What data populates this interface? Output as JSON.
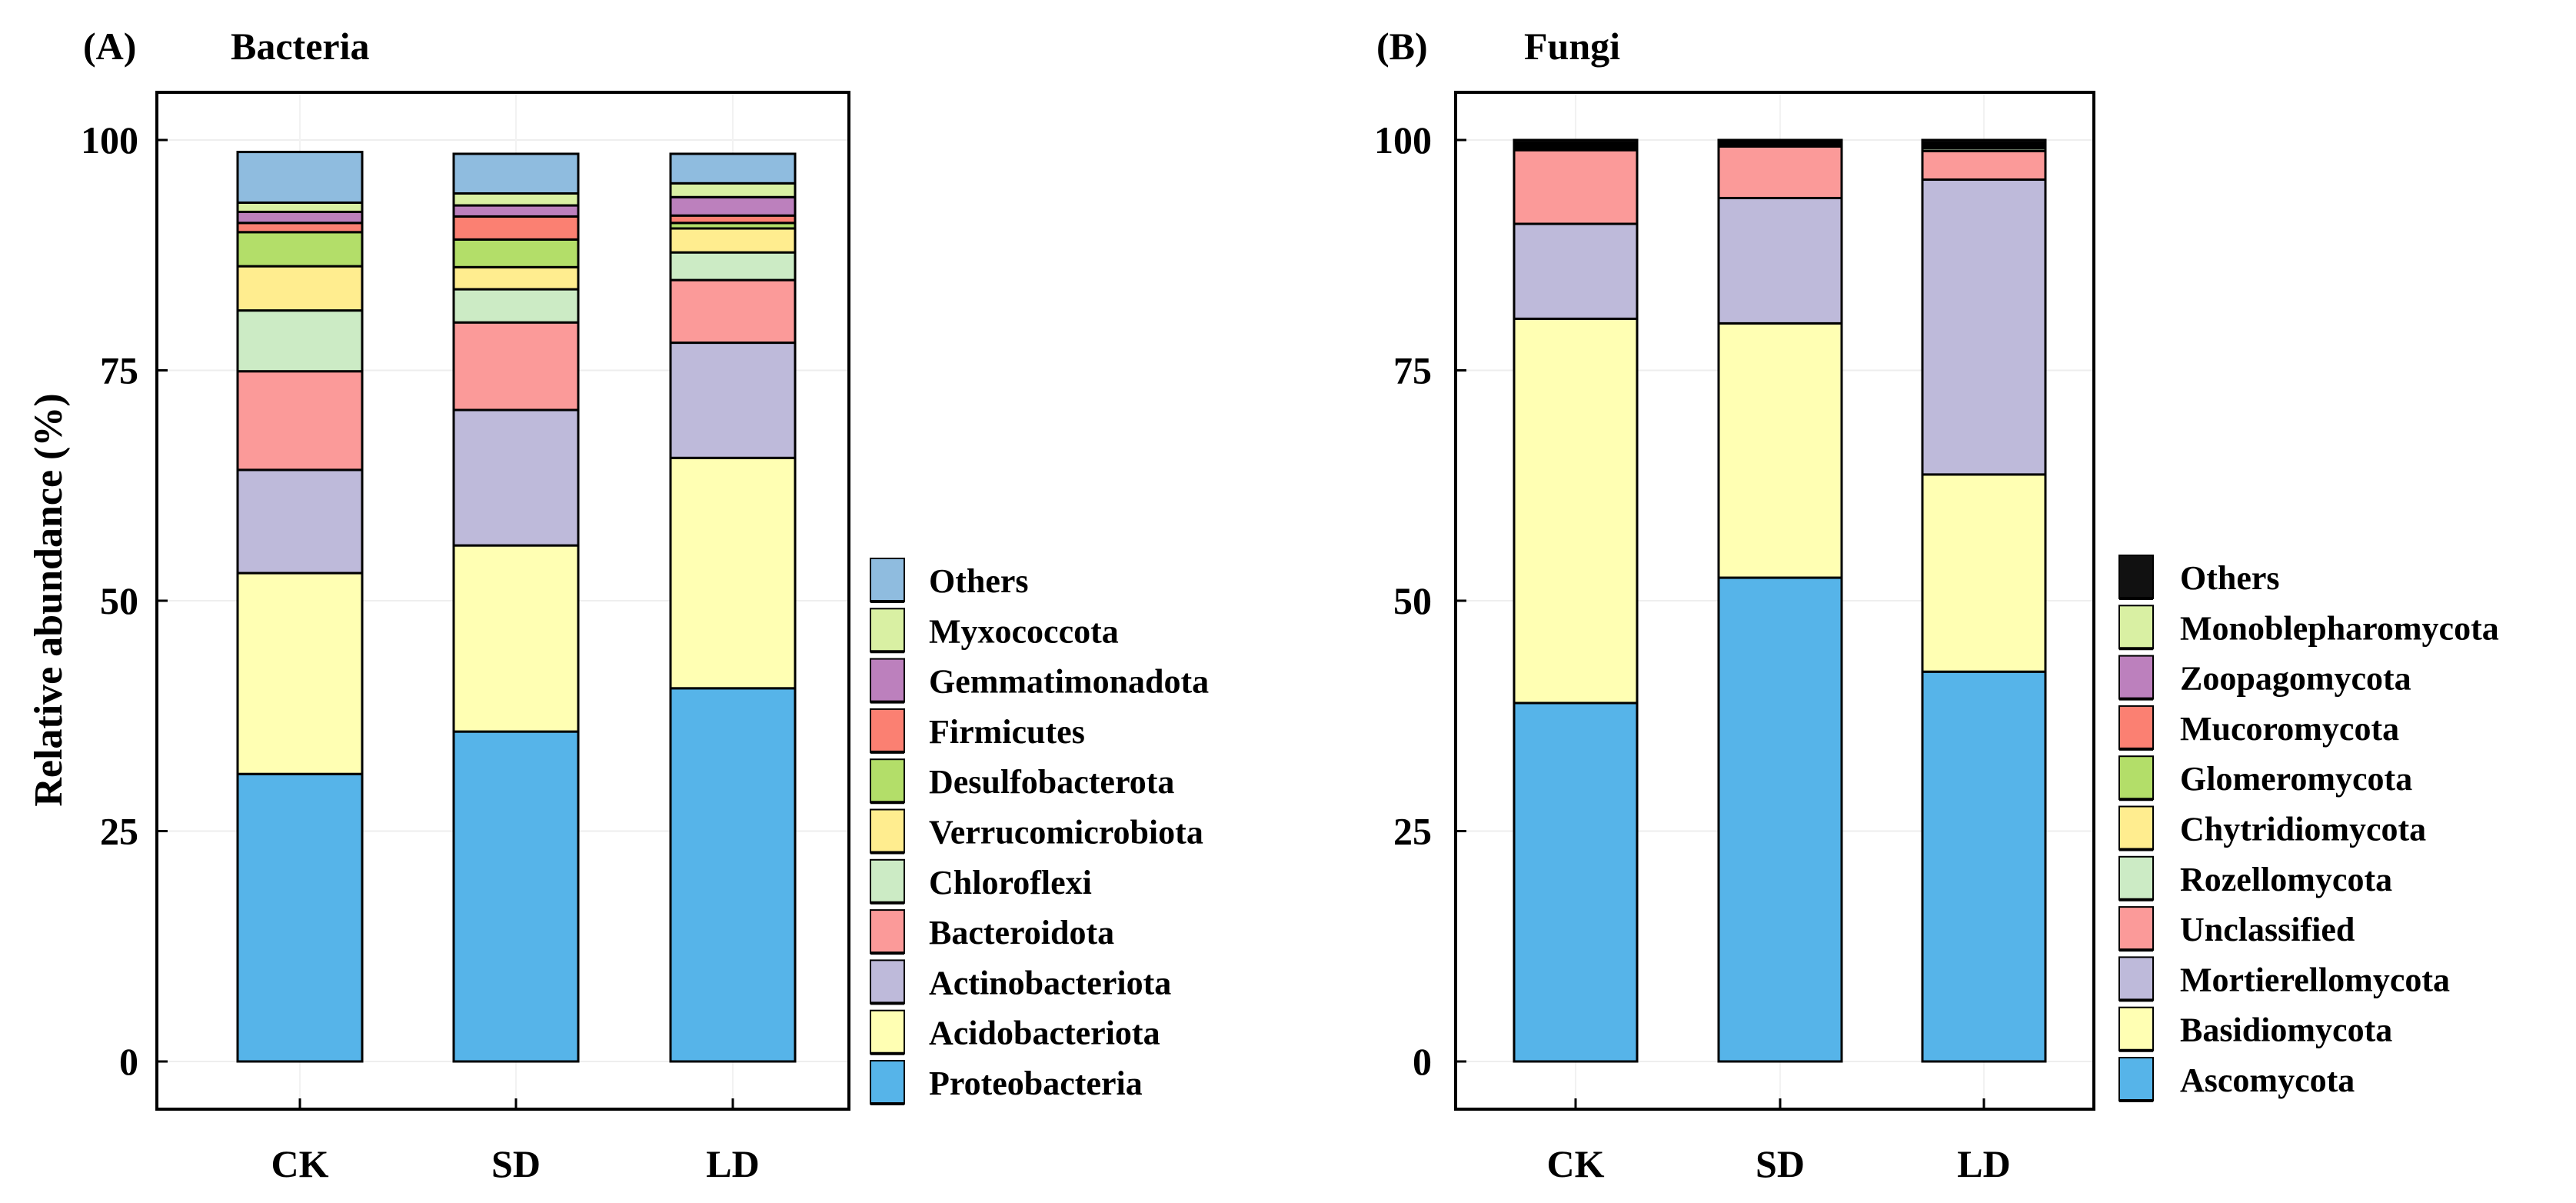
{
  "y_axis_label": "Relative abundance  (%)",
  "chart_data": [
    {
      "type": "bar",
      "stacked": true,
      "panel": "(A)",
      "title": "Bacteria",
      "xlabel": "",
      "ylabel": "Relative abundance  (%)",
      "ylim": [
        0,
        100
      ],
      "yticks": [
        0,
        25,
        50,
        75,
        100
      ],
      "categories": [
        "CK",
        "SD",
        "LD"
      ],
      "series": [
        {
          "name": "Proteobacteria",
          "color": "#56B4E9",
          "values": [
            31.2,
            35.8,
            40.5
          ]
        },
        {
          "name": "Acidobacteriota",
          "color": "#FFFFB3",
          "values": [
            21.8,
            20.2,
            25.0
          ]
        },
        {
          "name": "Actinobacteriota",
          "color": "#BEBADA",
          "values": [
            11.2,
            14.7,
            12.5
          ]
        },
        {
          "name": "Bacteroidota",
          "color": "#FB9A99",
          "values": [
            10.7,
            9.5,
            6.8
          ]
        },
        {
          "name": "Chloroflexi",
          "color": "#CCEBC5",
          "values": [
            6.6,
            3.6,
            3.0
          ]
        },
        {
          "name": "Verrucomicrobiota",
          "color": "#FFED8F",
          "values": [
            4.8,
            2.4,
            2.6
          ]
        },
        {
          "name": "Desulfobacterota",
          "color": "#B3DE69",
          "values": [
            3.7,
            3.0,
            0.6
          ]
        },
        {
          "name": "Firmicutes",
          "color": "#FB8072",
          "values": [
            1.0,
            2.5,
            0.8
          ]
        },
        {
          "name": "Gemmatimonadota",
          "color": "#BC80BD",
          "values": [
            1.2,
            1.2,
            2.0
          ]
        },
        {
          "name": "Myxococcota",
          "color": "#D9F0A3",
          "values": [
            1.0,
            1.3,
            1.5
          ]
        },
        {
          "name": "Others",
          "color": "#8FBCDF",
          "values": [
            5.5,
            4.3,
            3.2
          ]
        }
      ]
    },
    {
      "type": "bar",
      "stacked": true,
      "panel": "(B)",
      "title": "Fungi",
      "xlabel": "",
      "ylabel": "",
      "ylim": [
        0,
        100
      ],
      "yticks": [
        0,
        25,
        50,
        75,
        100
      ],
      "categories": [
        "CK",
        "SD",
        "LD"
      ],
      "series": [
        {
          "name": "Ascomycota",
          "color": "#56B4E9",
          "values": [
            38.9,
            52.5,
            42.3
          ]
        },
        {
          "name": "Basidiomycota",
          "color": "#FFFFB3",
          "values": [
            41.7,
            27.6,
            21.4
          ]
        },
        {
          "name": "Mortierellomycota",
          "color": "#BEBADA",
          "values": [
            10.3,
            13.6,
            32.0
          ]
        },
        {
          "name": "Unclassified",
          "color": "#FB9A99",
          "values": [
            8.0,
            5.6,
            3.1
          ]
        },
        {
          "name": "Rozellomycota",
          "color": "#CCEBC5",
          "values": [
            0.2,
            0.1,
            0.3
          ]
        },
        {
          "name": "Chytridiomycota",
          "color": "#FFED8F",
          "values": [
            0.2,
            0.1,
            0.2
          ]
        },
        {
          "name": "Glomeromycota",
          "color": "#B3DE69",
          "values": [
            0.1,
            0.1,
            0.1
          ]
        },
        {
          "name": "Mucoromycota",
          "color": "#FB8072",
          "values": [
            0.1,
            0.1,
            0.1
          ]
        },
        {
          "name": "Zoopagomycota",
          "color": "#BC80BD",
          "values": [
            0.1,
            0.1,
            0.1
          ]
        },
        {
          "name": "Monoblepharomycota",
          "color": "#D9F0A3",
          "values": [
            0.1,
            0.1,
            0.1
          ]
        },
        {
          "name": "Others",
          "color": "#111111",
          "values": [
            0.3,
            0.1,
            0.3
          ]
        }
      ]
    }
  ]
}
